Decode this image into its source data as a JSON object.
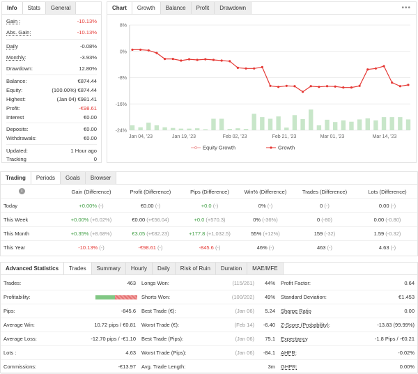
{
  "info_panel": {
    "tabs": [
      "Info",
      "Stats",
      "General"
    ],
    "rows": [
      {
        "label": "Gain :",
        "value": "-10.13%"
      },
      {
        "label": "Abs. Gain:",
        "value": "-10.13%"
      },
      {
        "label": "Daily",
        "value": "-0.08%"
      },
      {
        "label": "Monthly:",
        "value": "-3.93%"
      },
      {
        "label": "Drawdown:",
        "value": "12.80%"
      },
      {
        "label": "Balance:",
        "value": "€874.44"
      },
      {
        "label": "Equity:",
        "value": "(100.00%) €874.44"
      },
      {
        "label": "Highest:",
        "value": "(Jan 04) €981.41"
      },
      {
        "label": "Profit:",
        "value": "-€98.61"
      },
      {
        "label": "Interest",
        "value": "€0.00"
      },
      {
        "label": "Deposits:",
        "value": "€0.00"
      },
      {
        "label": "Withdrawals:",
        "value": "€0.00"
      },
      {
        "label": "Updated:",
        "value": "1 Hour ago"
      },
      {
        "label": "Tracking",
        "value": "0"
      }
    ]
  },
  "chart_panel": {
    "tabs": [
      "Chart",
      "Growth",
      "Balance",
      "Profit",
      "Drawdown"
    ],
    "menu": "•••"
  },
  "chart_data": {
    "type": "line",
    "ylim": [
      -24,
      8
    ],
    "y_ticks": [
      "8%",
      "0%",
      "-8%",
      "-16%",
      "-24%"
    ],
    "x_ticks": [
      "Jan 04, '23",
      "Jan 19, '23",
      "Feb 02, '23",
      "Feb 21, '23",
      "Mar 01, '23",
      "Mar 14, '23"
    ],
    "legend": [
      "Equity Growth",
      "Growth"
    ],
    "series": [
      {
        "name": "Growth",
        "color": "#e53935",
        "values": [
          0.5,
          0.5,
          0.3,
          -0.5,
          -2.3,
          -2.3,
          -2.8,
          -2.4,
          -2.6,
          -2.4,
          -2.6,
          -2.8,
          -3.0,
          -5.0,
          -5.2,
          -5.2,
          -4.8,
          -10.5,
          -10.8,
          -10.5,
          -10.6,
          -12.3,
          -10.6,
          -10.8,
          -10.6,
          -10.7,
          -11.0,
          -11.0,
          -10.5,
          -5.5,
          -5.2,
          -4.5,
          -9.5,
          -10.6,
          -10.2
        ],
        "bars": [
          1.5,
          0.9,
          2.3,
          1.5,
          0.9,
          0.7,
          0.5,
          0.5,
          0.6,
          0.3,
          3.5,
          3.5,
          0.4,
          0.6,
          0.4,
          5.0,
          4.0,
          3.5,
          4.2,
          0.8,
          4.6,
          3.4,
          6.3,
          1.5,
          3.2,
          2.5,
          3.0,
          2.6,
          3.3,
          3.6,
          3.0,
          4.0,
          4.0,
          4.0,
          3.3
        ]
      }
    ]
  },
  "periods_panel": {
    "tabs": [
      "Trading",
      "Periods",
      "Goals",
      "Browser"
    ],
    "info_icon": "i",
    "headers": [
      "Gain (Difference)",
      "Profit (Difference)",
      "Pips (Difference)",
      "Win% (Difference)",
      "Trades (Difference)",
      "Lots (Difference)"
    ],
    "rows": [
      {
        "label": "Today",
        "cells": [
          [
            "+0.00%",
            "(-)"
          ],
          [
            "€0.00",
            "(-)"
          ],
          [
            "+0.0",
            "(-)"
          ],
          [
            "0%",
            "(-)"
          ],
          [
            "0",
            "(-)"
          ],
          [
            "0.00",
            "(-)"
          ]
        ]
      },
      {
        "label": "This Week",
        "cells": [
          [
            "+0.00%",
            "(+6.02%)"
          ],
          [
            "€0.00",
            "(+€56.04)"
          ],
          [
            "+0.0",
            "(+570.3)"
          ],
          [
            "0%",
            "(-36%)"
          ],
          [
            "0",
            "(-80)"
          ],
          [
            "0.00",
            "(-0.80)"
          ]
        ]
      },
      {
        "label": "This Month",
        "cells": [
          [
            "+0.35%",
            "(+8.68%)"
          ],
          [
            "€3.05",
            "(+€82.23)"
          ],
          [
            "+177.8",
            "(+1,032.5)"
          ],
          [
            "55%",
            "(+12%)"
          ],
          [
            "159",
            "(-32)"
          ],
          [
            "1.59",
            "(-0.32)"
          ]
        ]
      },
      {
        "label": "This Year",
        "cells": [
          [
            "-10.13%",
            "(-)"
          ],
          [
            "-€98.61",
            "(-)"
          ],
          [
            "-845.6",
            "(-)"
          ],
          [
            "46%",
            "(-)"
          ],
          [
            "463",
            "(-)"
          ],
          [
            "4.63",
            "(-)"
          ]
        ]
      }
    ]
  },
  "adv_panel": {
    "tabs": [
      "Advanced Statistics",
      "Trades",
      "Summary",
      "Hourly",
      "Daily",
      "Risk of Ruin",
      "Duration",
      "MAE/MFE"
    ],
    "profitability_win_fraction": 0.46,
    "rows": [
      [
        {
          "label": "Trades:",
          "value": "463"
        },
        {
          "label": "Longs Won:",
          "note": "(115/261)",
          "value": "44%"
        },
        {
          "label": "Profit Factor:",
          "value": "0.64"
        }
      ],
      [
        {
          "label": "Profitability:",
          "value": ""
        },
        {
          "label": "Shorts Won:",
          "note": "(100/202)",
          "value": "49%"
        },
        {
          "label": "Standard Deviation:",
          "value": "€1.453"
        }
      ],
      [
        {
          "label": "Pips:",
          "value": "-845.6"
        },
        {
          "label": "Best Trade (€):",
          "note": "(Jan 06)",
          "value": "5.24"
        },
        {
          "label": "Sharpe Ratio",
          "value": "0.00"
        }
      ],
      [
        {
          "label": "Average Win:",
          "value": "10.72 pips / €0.81"
        },
        {
          "label": "Worst Trade (€):",
          "note": "(Feb 14)",
          "value": "-6.40"
        },
        {
          "label": "Z-Score (Probability):",
          "value": "-13.83 (99.99%)"
        }
      ],
      [
        {
          "label": "Average Loss:",
          "value": "-12.70 pips / -€1.10"
        },
        {
          "label": "Best Trade (Pips):",
          "note": "(Jan 06)",
          "value": "75.1"
        },
        {
          "label": "Expectancy",
          "value": "-1.8 Pips / -€0.21"
        }
      ],
      [
        {
          "label": "Lots :",
          "value": "4.63"
        },
        {
          "label": "Worst Trade (Pips):",
          "note": "(Jan 06)",
          "value": "-84.1"
        },
        {
          "label": "AHPR:",
          "value": "-0.02%"
        }
      ],
      [
        {
          "label": "Commissions:",
          "value": "-€13.97"
        },
        {
          "label": "Avg. Trade Length:",
          "note": "",
          "value": "3m"
        },
        {
          "label": "GHPR:",
          "value": "0.00%"
        }
      ]
    ]
  }
}
